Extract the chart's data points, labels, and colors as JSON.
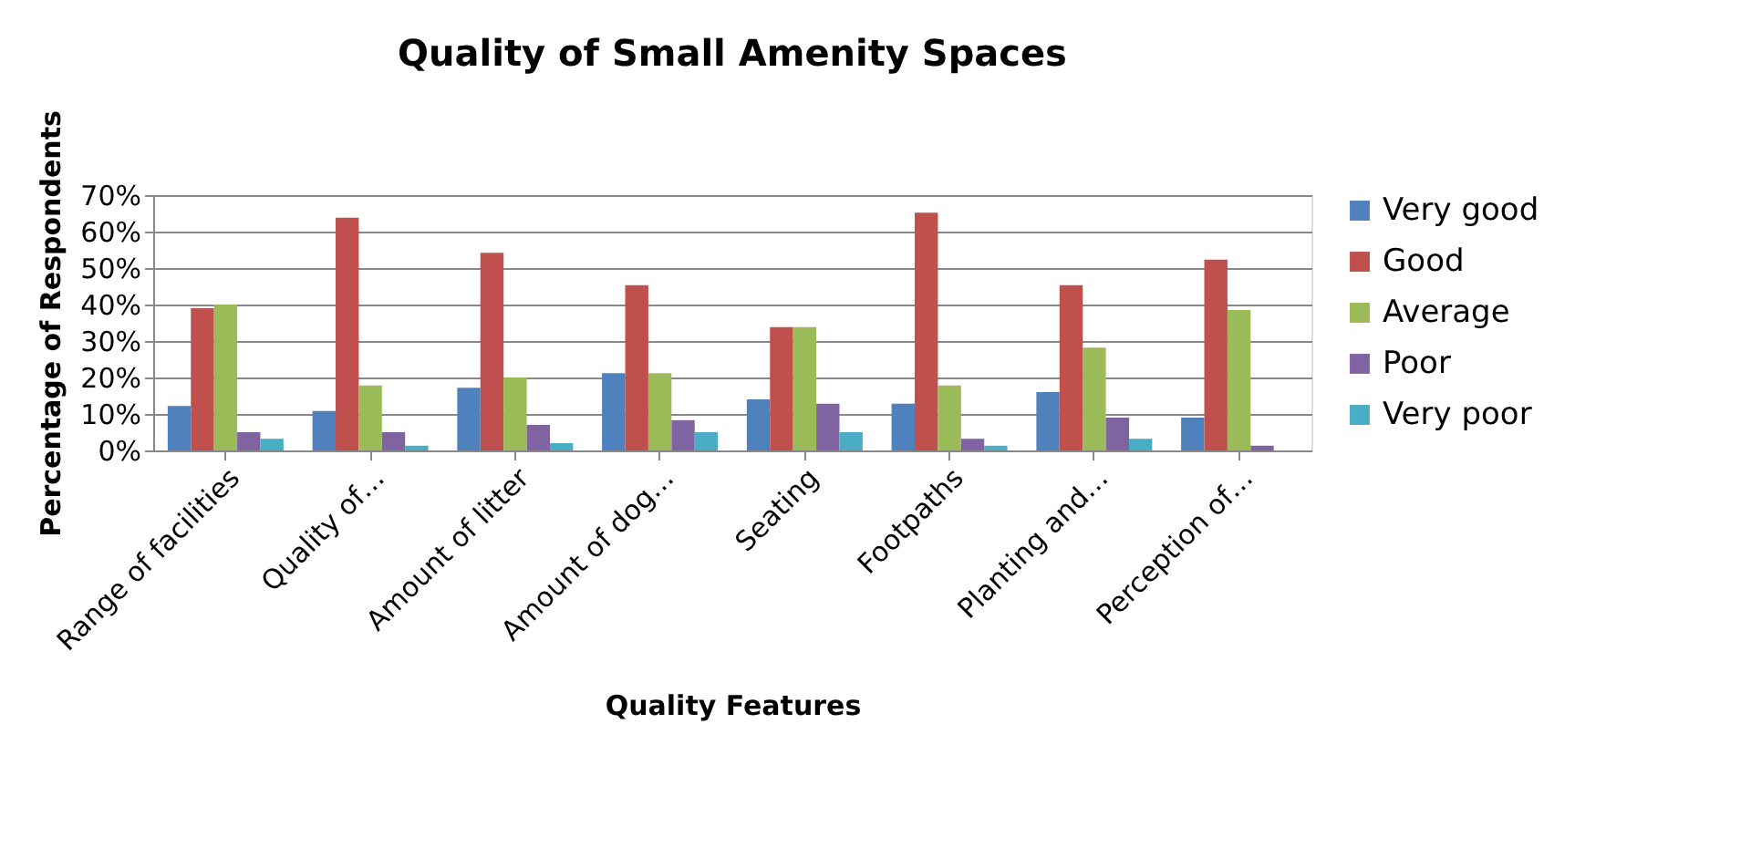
{
  "chart_data": {
    "type": "bar",
    "title": "Quality of Small Amenity Spaces",
    "xlabel": "Quality Features",
    "ylabel": "Percentage of Respondents",
    "categories": [
      "Range of facilities",
      "Quality of…",
      "Amount of litter",
      "Amount of dog…",
      "Seating",
      "Footpaths",
      "Planting and…",
      "Perception of…"
    ],
    "series": [
      {
        "name": "Very good",
        "color": "#4f81bd",
        "values": [
          12.2,
          10.8,
          17.2,
          21.2,
          14,
          12.8,
          16,
          9
        ]
      },
      {
        "name": "Good",
        "color": "#c0504d",
        "values": [
          39,
          63.8,
          54.2,
          45.3,
          33.8,
          65.2,
          45.3,
          52.3
        ]
      },
      {
        "name": "Average",
        "color": "#9bbb59",
        "values": [
          40,
          17.8,
          20,
          21.2,
          33.8,
          17.8,
          28.2,
          38.5
        ]
      },
      {
        "name": "Poor",
        "color": "#8064a2",
        "values": [
          5,
          5,
          7,
          8.3,
          12.8,
          3.2,
          9,
          1.3
        ]
      },
      {
        "name": "Very poor",
        "color": "#4bacc6",
        "values": [
          3.2,
          1.3,
          2,
          5,
          5,
          1.3,
          3.2,
          0
        ]
      }
    ],
    "ylim": [
      0,
      70
    ],
    "yticks": [
      {
        "value": 0,
        "label": "0%"
      },
      {
        "value": 10,
        "label": "10%"
      },
      {
        "value": 20,
        "label": "20%"
      },
      {
        "value": 30,
        "label": "30%"
      },
      {
        "value": 40,
        "label": "40%"
      },
      {
        "value": 50,
        "label": "50%"
      },
      {
        "value": 60,
        "label": "60%"
      },
      {
        "value": 70,
        "label": "70%"
      }
    ],
    "grid": "y",
    "legend": "right"
  }
}
